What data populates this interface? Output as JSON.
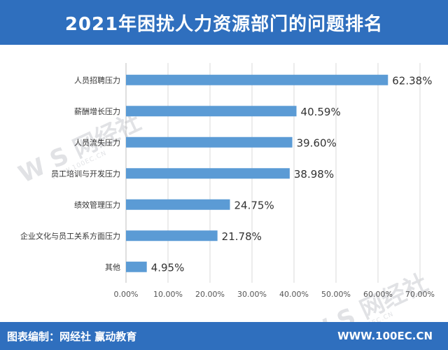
{
  "header": {
    "title": "2021年困扰人力资源部门的问题排名"
  },
  "footer": {
    "left_text": "图表编制：网经社 赢动教育",
    "right_text": "WWW.100EC.CN"
  },
  "watermark": {
    "brand": "W S 网经社",
    "url": "WWW.100EC.CN"
  },
  "colors": {
    "header_bg": "#2f6fbe",
    "bar": "#5b9bd5",
    "text": "#333333",
    "grid": "#d9d9d9"
  },
  "chart_data": {
    "type": "bar",
    "orientation": "horizontal",
    "categories": [
      "人员招聘压力",
      "薪酬增长压力",
      "人员流失压力",
      "员工培训与开发压力",
      "绩效管理压力",
      "企业文化与员工关系方面压力",
      "其他"
    ],
    "values": [
      62.38,
      40.59,
      39.6,
      38.98,
      24.75,
      21.78,
      4.95
    ],
    "value_labels": [
      "62.38%",
      "40.59%",
      "39.60%",
      "38.98%",
      "24.75%",
      "21.78%",
      "4.95%"
    ],
    "xlim": [
      0,
      70
    ],
    "xticks": [
      "0.00%",
      "10.00%",
      "20.00%",
      "30.00%",
      "40.00%",
      "50.00%",
      "60.00%",
      "70.00%"
    ],
    "grid": true,
    "title": "2021年困扰人力资源部门的问题排名",
    "xlabel": "",
    "ylabel": ""
  }
}
